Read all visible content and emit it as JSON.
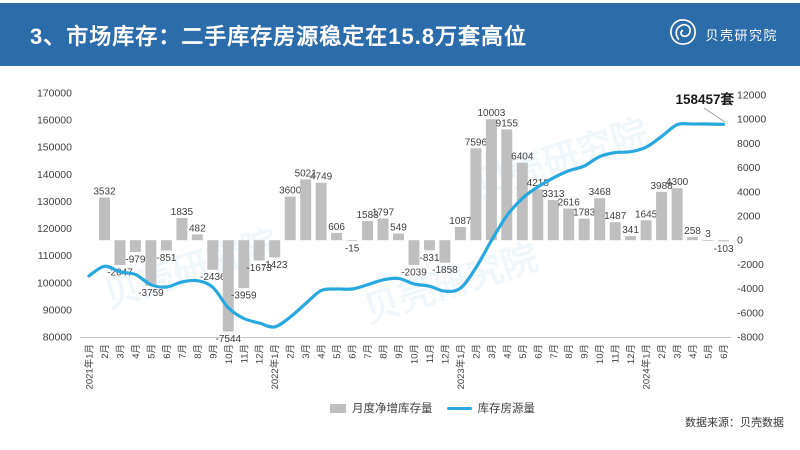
{
  "header": {
    "title": "3、市场库存：二手库存房源稳定在15.8万套高位",
    "logo_text": "贝壳研究院"
  },
  "watermark": "贝壳研究院",
  "colors": {
    "header_bg": "#2d6cab",
    "bar": "#bfbfbf",
    "line": "#29a8e0",
    "label": "#404040",
    "axis_line": "#c8c8c8",
    "leader_line": "#999999"
  },
  "chart_data": {
    "type": "bar+line combo",
    "categories": [
      "2021年1月",
      "2月",
      "3月",
      "4月",
      "5月",
      "6月",
      "7月",
      "8月",
      "9月",
      "10月",
      "11月",
      "12月",
      "2022年1月",
      "2月",
      "3月",
      "4月",
      "5月",
      "6月",
      "7月",
      "8月",
      "9月",
      "10月",
      "11月",
      "12月",
      "2023年1月",
      "2月",
      "3月",
      "4月",
      "5月",
      "6月",
      "7月",
      "8月",
      "9月",
      "10月",
      "11月",
      "12月",
      "2024年1月",
      "2月",
      "3月",
      "4月",
      "5月",
      "6月"
    ],
    "series": [
      {
        "name": "月度净增库存量",
        "type": "bar",
        "axis": "right",
        "values": [
          null,
          3532,
          -2047,
          -979,
          -3759,
          -851,
          1835,
          482,
          -2436,
          -7544,
          -3959,
          -1673,
          -1423,
          3600,
          5021,
          4749,
          606,
          -15,
          1583,
          1797,
          549,
          -2039,
          -831,
          -1858,
          1087,
          7596,
          10003,
          9155,
          6404,
          4218,
          3313,
          2616,
          1783,
          3468,
          1487,
          341,
          1645,
          3988,
          4300,
          258,
          3,
          -103
        ]
      },
      {
        "name": "库存房源量",
        "type": "line",
        "axis": "left",
        "values": [
          102555,
          106087,
          104040,
          103061,
          99302,
          98451,
          100286,
          100768,
          98332,
          90788,
          86829,
          85156,
          83733,
          87333,
          92354,
          97103,
          97709,
          97694,
          99277,
          101074,
          101623,
          99584,
          98753,
          96895,
          97982,
          105578,
          115581,
          124736,
          131140,
          135358,
          138671,
          141287,
          143070,
          146538,
          148025,
          148366,
          150011,
          153999,
          158299,
          158557,
          158560,
          158457
        ]
      }
    ],
    "left_axis": {
      "min": 80000,
      "max": 170000,
      "step": 10000
    },
    "right_axis": {
      "min": -8000,
      "max": 12000,
      "step": 2000
    },
    "annotation": {
      "text": "158457套"
    },
    "legend": [
      "月度净增库存量",
      "库存房源量"
    ],
    "legend_position": "bottom"
  },
  "footer": {
    "source": "数据来源：贝壳数据"
  }
}
